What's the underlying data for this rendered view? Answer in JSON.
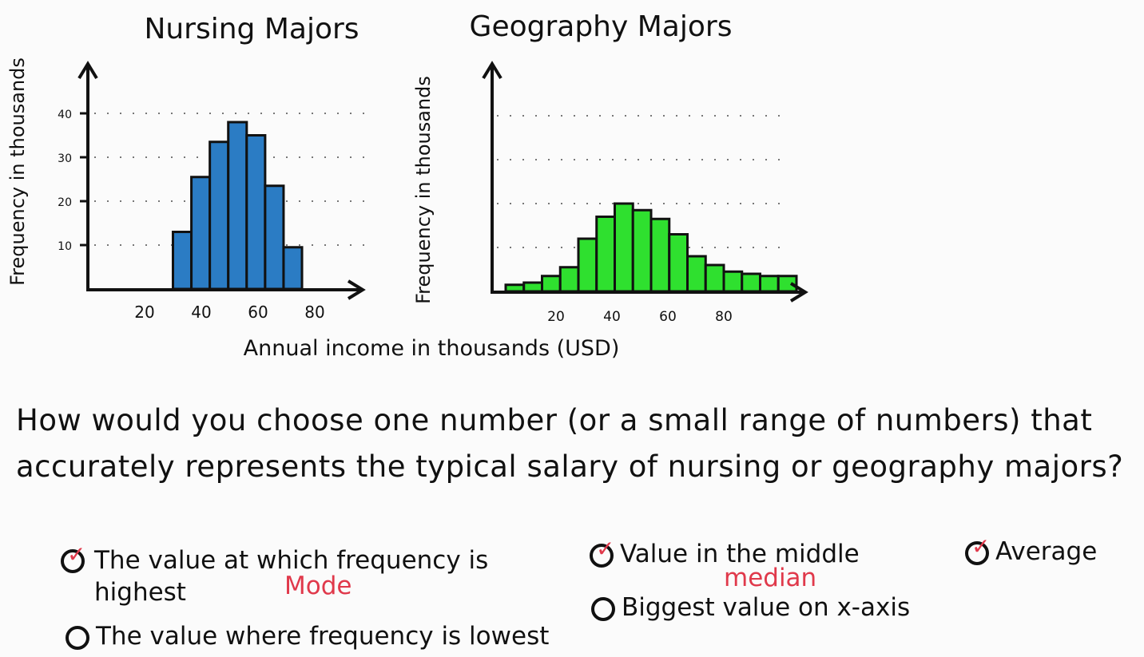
{
  "chart_data": [
    {
      "type": "bar",
      "title": "Nursing Majors",
      "ylabel": "Frequency in thousands",
      "xlabel": "Annual income in thousands (USD)",
      "x_ticks": [
        20,
        40,
        60,
        80
      ],
      "y_ticks": [
        10,
        20,
        30,
        40
      ],
      "xlim": [
        0,
        100
      ],
      "ylim": [
        0,
        45
      ],
      "grid": "dotted horizontal",
      "color": "#2b7cc4",
      "bin_width": 6.5,
      "bins": [
        {
          "x": 30,
          "value": 13
        },
        {
          "x": 36.5,
          "value": 25.5
        },
        {
          "x": 43,
          "value": 33.5
        },
        {
          "x": 49.5,
          "value": 38
        },
        {
          "x": 56,
          "value": 35
        },
        {
          "x": 62.5,
          "value": 23.5
        },
        {
          "x": 69,
          "value": 9.5
        }
      ]
    },
    {
      "type": "bar",
      "title": "Geography Majors",
      "ylabel": "Frequency in thousands",
      "xlabel": "",
      "x_ticks": [
        20,
        40,
        60,
        80
      ],
      "xlim": [
        0,
        110
      ],
      "ylim": [
        0,
        45
      ],
      "grid": "dotted horizontal",
      "color": "#2fe02f",
      "bin_width": 6.5,
      "bins": [
        {
          "x": 2,
          "value": 1.5
        },
        {
          "x": 8.5,
          "value": 2
        },
        {
          "x": 15,
          "value": 3.5
        },
        {
          "x": 21.5,
          "value": 5.5
        },
        {
          "x": 28,
          "value": 12
        },
        {
          "x": 34.5,
          "value": 17
        },
        {
          "x": 41,
          "value": 20
        },
        {
          "x": 47.5,
          "value": 18.5
        },
        {
          "x": 54,
          "value": 16.5
        },
        {
          "x": 60.5,
          "value": 13
        },
        {
          "x": 67,
          "value": 8
        },
        {
          "x": 73.5,
          "value": 6
        },
        {
          "x": 80,
          "value": 4.5
        },
        {
          "x": 86.5,
          "value": 4
        },
        {
          "x": 93,
          "value": 3.5
        },
        {
          "x": 99.5,
          "value": 3.5
        }
      ]
    }
  ],
  "question": "How would you choose one number (or a small range of numbers) that accurately represents the typical salary of nursing or geography majors?",
  "options": {
    "mode": {
      "label": "The value at which frequency is highest",
      "note": "Mode",
      "checked": true
    },
    "lowest": {
      "label": "The value where frequency is lowest",
      "checked": false
    },
    "middle": {
      "label": "Value in the middle",
      "note": "median",
      "checked": true
    },
    "biggest": {
      "label": "Biggest value on x-axis",
      "checked": false
    },
    "average": {
      "label": "Average",
      "checked": true
    }
  },
  "check_mark": "✓"
}
